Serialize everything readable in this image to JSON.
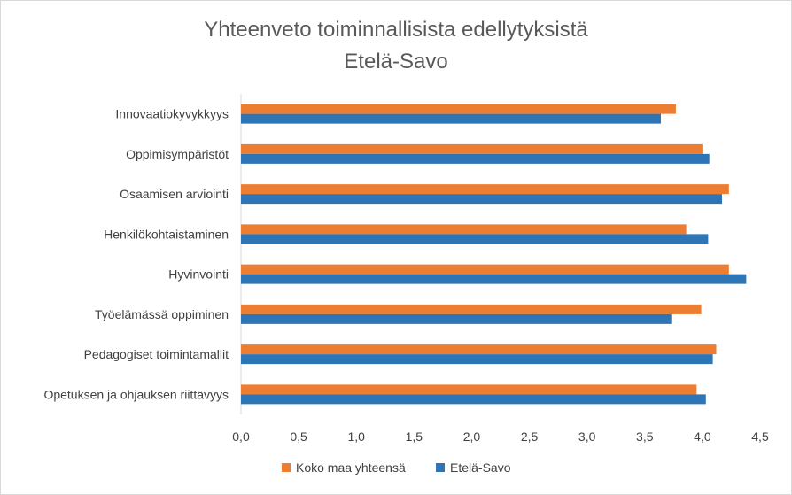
{
  "chart_data": {
    "type": "bar",
    "orientation": "horizontal",
    "title": "Yhteenveto toiminnallisista edellytyksistä",
    "subtitle": "Etelä-Savo",
    "categories": [
      "Innovaatiokyvykkyys",
      "Oppimisympäristöt",
      "Osaamisen arviointi",
      "Henkilökohtaistaminen",
      "Hyvinvointi",
      "Työelämässä oppiminen",
      "Pedagogiset toimintamallit",
      "Opetuksen ja ohjauksen riittävyys"
    ],
    "series": [
      {
        "name": "Koko maa yhteensä",
        "color": "#ed7d31",
        "values": [
          3.77,
          4.0,
          4.23,
          3.86,
          4.23,
          3.99,
          4.12,
          3.95
        ]
      },
      {
        "name": "Etelä-Savo",
        "color": "#2e75b6",
        "values": [
          3.64,
          4.06,
          4.17,
          4.05,
          4.38,
          3.73,
          4.09,
          4.03
        ]
      }
    ],
    "xlim": [
      0,
      4.5
    ],
    "xticks": [
      "0,0",
      "0,5",
      "1,0",
      "1,5",
      "2,0",
      "2,5",
      "3,0",
      "3,5",
      "4,0",
      "4,5"
    ],
    "legend_position": "bottom"
  }
}
